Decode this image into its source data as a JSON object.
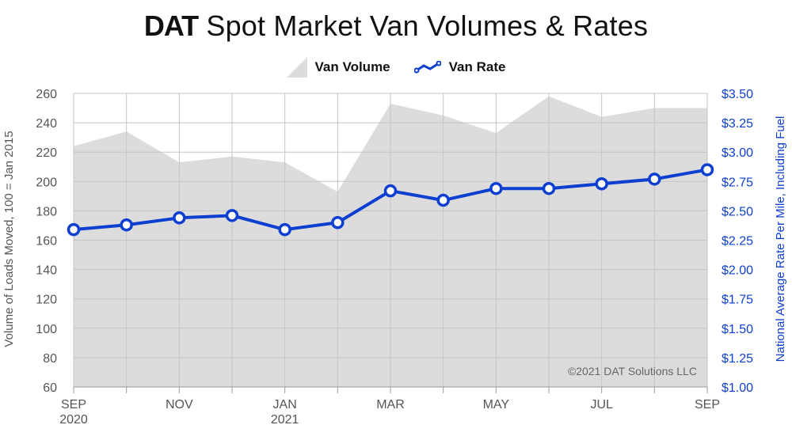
{
  "title": {
    "brand": "DAT",
    "rest": "Spot Market Van Volumes & Rates"
  },
  "legend": {
    "volume": "Van Volume",
    "rate": "Van Rate"
  },
  "colors": {
    "area": "#dcdcdc",
    "rate": "#0d3fd0",
    "left_axis": "#555555",
    "right_axis": "#0d3fd0",
    "grid": "#c4c4c4"
  },
  "watermark": "©2021 DAT Solutions LLC",
  "chart_data": {
    "type": "line",
    "x": [
      "2020-09",
      "2020-10",
      "2020-11",
      "2020-12",
      "2021-01",
      "2021-02",
      "2021-03",
      "2021-04",
      "2021-05",
      "2021-06",
      "2021-07",
      "2021-08",
      "2021-09"
    ],
    "x_tick_labels": [
      {
        "index": 0,
        "line1": "SEP",
        "line2": "2020"
      },
      {
        "index": 2,
        "line1": "NOV",
        "line2": ""
      },
      {
        "index": 4,
        "line1": "JAN",
        "line2": "2021"
      },
      {
        "index": 6,
        "line1": "MAR",
        "line2": ""
      },
      {
        "index": 8,
        "line1": "MAY",
        "line2": ""
      },
      {
        "index": 10,
        "line1": "JUL",
        "line2": ""
      },
      {
        "index": 12,
        "line1": "SEP",
        "line2": ""
      }
    ],
    "series": [
      {
        "name": "Van Volume",
        "type": "area",
        "axis": "left",
        "values": [
          224,
          234,
          213,
          217,
          213,
          193,
          253,
          245,
          233,
          258,
          244,
          250,
          250
        ]
      },
      {
        "name": "Van Rate",
        "type": "line",
        "axis": "right",
        "values": [
          2.34,
          2.38,
          2.44,
          2.46,
          2.34,
          2.4,
          2.67,
          2.59,
          2.69,
          2.69,
          2.73,
          2.77,
          2.85
        ]
      }
    ],
    "y_left": {
      "label": "Volume of Loads Moved, 100 = Jan 2015",
      "min": 60,
      "max": 260,
      "step": 20,
      "ticks": [
        "60",
        "80",
        "100",
        "120",
        "140",
        "160",
        "180",
        "200",
        "220",
        "240",
        "260"
      ]
    },
    "y_right": {
      "label": "National Average Rate Per Mile, Including Fuel",
      "min": 1.0,
      "max": 3.5,
      "step": 0.25,
      "ticks": [
        "$1.00",
        "$1.25",
        "$1.50",
        "$1.75",
        "$2.00",
        "$2.25",
        "$2.50",
        "$2.75",
        "$3.00",
        "$3.25",
        "$3.50"
      ]
    },
    "grid": true,
    "legend_position": "top-center"
  }
}
